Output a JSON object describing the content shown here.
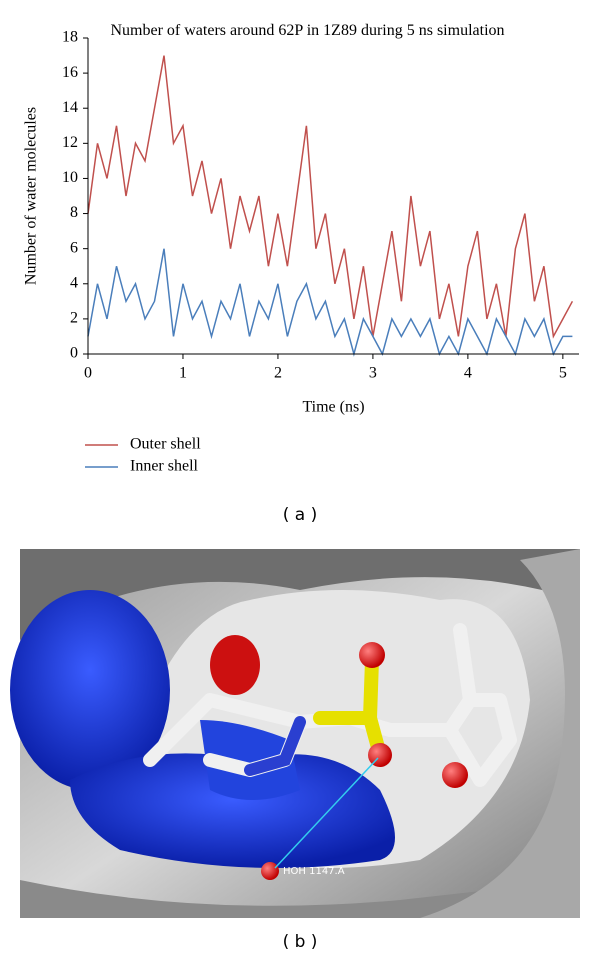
{
  "chart_data": {
    "type": "line",
    "title": "Number of waters around 62P in 1Z89 during 5 ns simulation",
    "x_label": "Time (ns)",
    "y_label": "Number of water molecules",
    "x": [
      0,
      0.1,
      0.2,
      0.3,
      0.4,
      0.5,
      0.6,
      0.7,
      0.8,
      0.9,
      1.0,
      1.1,
      1.2,
      1.3,
      1.4,
      1.5,
      1.6,
      1.7,
      1.8,
      1.9,
      2.0,
      2.1,
      2.2,
      2.3,
      2.4,
      2.5,
      2.6,
      2.7,
      2.8,
      2.9,
      3.0,
      3.1,
      3.2,
      3.3,
      3.4,
      3.5,
      3.6,
      3.7,
      3.8,
      3.9,
      4.0,
      4.1,
      4.2,
      4.3,
      4.4,
      4.5,
      4.6,
      4.7,
      4.8,
      4.9,
      5.0,
      5.1
    ],
    "series": [
      {
        "name": "Outer shell",
        "color": "#c0504d",
        "values": [
          8,
          12,
          10,
          13,
          9,
          12,
          11,
          14,
          17,
          12,
          13,
          9,
          11,
          8,
          10,
          6,
          9,
          7,
          9,
          5,
          8,
          5,
          9,
          13,
          6,
          8,
          4,
          6,
          2,
          5,
          1,
          4,
          7,
          3,
          9,
          5,
          7,
          2,
          4,
          1,
          5,
          7,
          2,
          4,
          1,
          6,
          8,
          3,
          5,
          1,
          2,
          3
        ]
      },
      {
        "name": "Inner shell",
        "color": "#4a7ebb",
        "values": [
          1,
          4,
          2,
          5,
          3,
          4,
          2,
          3,
          6,
          1,
          4,
          2,
          3,
          1,
          3,
          2,
          4,
          1,
          3,
          2,
          4,
          1,
          3,
          4,
          2,
          3,
          1,
          2,
          0,
          2,
          1,
          0,
          2,
          1,
          2,
          1,
          2,
          0,
          1,
          0,
          2,
          1,
          0,
          2,
          1,
          0,
          2,
          1,
          2,
          0,
          1,
          1
        ]
      }
    ],
    "xlim": [
      0,
      5.17
    ],
    "ylim": [
      0,
      18
    ],
    "xticks": [
      0,
      1,
      2,
      3,
      4,
      5
    ],
    "yticks": [
      0,
      2,
      4,
      6,
      8,
      10,
      12,
      14,
      16,
      18
    ],
    "legend": "below-left"
  },
  "captions": [
    "( a )",
    "( b )"
  ],
  "image_annotation": "HOH 1147.A"
}
